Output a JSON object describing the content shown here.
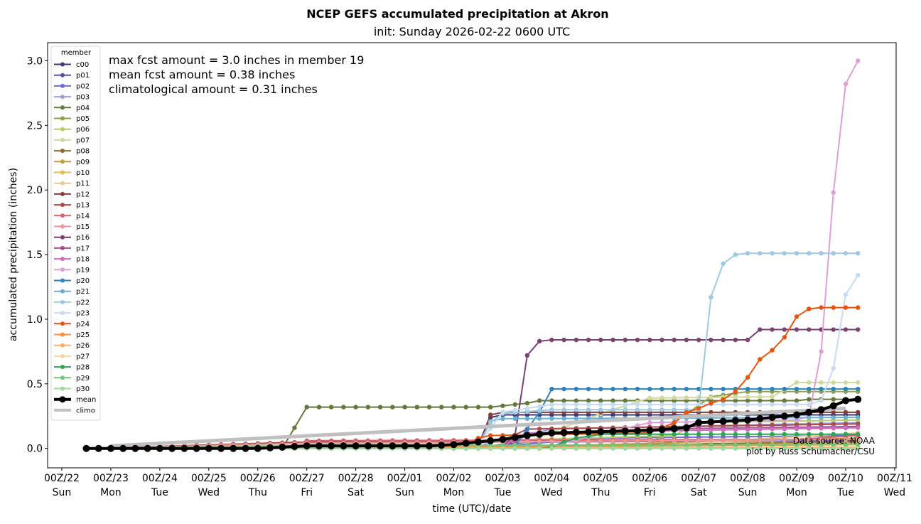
{
  "chart_data": {
    "type": "line",
    "title": "NCEP GEFS accumulated precipitation at Akron",
    "subtitle": "init: Sunday 2026-02-22 0600 UTC",
    "xlabel": "time (UTC)/date",
    "ylabel": "accumulated precipitation (inches)",
    "x_units": "days since 00Z Feb 22 2026",
    "xlim": [
      -0.29,
      17.03
    ],
    "ylim": [
      -0.15,
      3.14
    ],
    "marker_step_days": 0.25,
    "marker_range_days": [
      0.5,
      16.25
    ],
    "interpolation": "linear between knots [day, inches]",
    "x_ticks": [
      {
        "label": "00Z/22",
        "day": "Sun"
      },
      {
        "label": "00Z/23",
        "day": "Mon"
      },
      {
        "label": "00Z/24",
        "day": "Tue"
      },
      {
        "label": "00Z/25",
        "day": "Wed"
      },
      {
        "label": "00Z/26",
        "day": "Thu"
      },
      {
        "label": "00Z/27",
        "day": "Fri"
      },
      {
        "label": "00Z/28",
        "day": "Sat"
      },
      {
        "label": "00Z/01",
        "day": "Sun"
      },
      {
        "label": "00Z/02",
        "day": "Mon"
      },
      {
        "label": "00Z/03",
        "day": "Tue"
      },
      {
        "label": "00Z/04",
        "day": "Wed"
      },
      {
        "label": "00Z/05",
        "day": "Thu"
      },
      {
        "label": "00Z/06",
        "day": "Fri"
      },
      {
        "label": "00Z/07",
        "day": "Sat"
      },
      {
        "label": "00Z/08",
        "day": "Sun"
      },
      {
        "label": "00Z/09",
        "day": "Mon"
      },
      {
        "label": "00Z/10",
        "day": "Tue"
      },
      {
        "label": "00Z/11",
        "day": "Wed"
      }
    ],
    "y_ticks": [
      "0.0",
      "0.5",
      "1.0",
      "1.5",
      "2.0",
      "2.5",
      "3.0"
    ],
    "y_tick_values": [
      0,
      0.5,
      1.0,
      1.5,
      2.0,
      2.5,
      3.0
    ],
    "legend_title": "member",
    "legend_position": "upper-left",
    "annotations": [
      "max fcst amount = 3.0 inches in member 19",
      "mean fcst amount = 0.38 inches",
      "climatological amount = 0.31 inches"
    ],
    "credits": [
      "Data source: NOAA",
      "plot by Russ Schumacher/CSU"
    ],
    "series": [
      {
        "name": "c00",
        "color": "#393b79",
        "knots": [
          [
            0.5,
            0
          ],
          [
            8.5,
            0.02
          ],
          [
            8.75,
            0.24
          ],
          [
            9.0,
            0.26
          ],
          [
            16.25,
            0.26
          ]
        ]
      },
      {
        "name": "p01",
        "color": "#5254a3",
        "knots": [
          [
            0.5,
            0
          ],
          [
            8.5,
            0.01
          ],
          [
            9.5,
            0.05
          ],
          [
            16.25,
            0.06
          ]
        ]
      },
      {
        "name": "p02",
        "color": "#6b6ecf",
        "knots": [
          [
            0.5,
            0
          ],
          [
            9.0,
            0.02
          ],
          [
            11,
            0.08
          ],
          [
            16.25,
            0.1
          ]
        ]
      },
      {
        "name": "p03",
        "color": "#9c9ede",
        "knots": [
          [
            0.5,
            0
          ],
          [
            8.5,
            0.02
          ],
          [
            10,
            0.15
          ],
          [
            16.25,
            0.2
          ]
        ]
      },
      {
        "name": "p04",
        "color": "#637939",
        "knots": [
          [
            0.5,
            0
          ],
          [
            4.5,
            0
          ],
          [
            4.75,
            0.16
          ],
          [
            5.0,
            0.32
          ],
          [
            8.75,
            0.32
          ],
          [
            9.0,
            0.33
          ],
          [
            9.5,
            0.35
          ],
          [
            9.75,
            0.37
          ],
          [
            15.0,
            0.37
          ],
          [
            15.25,
            0.38
          ],
          [
            16.25,
            0.38
          ]
        ]
      },
      {
        "name": "p05",
        "color": "#8ca252",
        "knots": [
          [
            0.5,
            0
          ],
          [
            12,
            0.02
          ],
          [
            12.5,
            0.2
          ],
          [
            13.25,
            0.4
          ],
          [
            14,
            0.44
          ],
          [
            16.25,
            0.44
          ]
        ]
      },
      {
        "name": "p06",
        "color": "#b5cf6b",
        "knots": [
          [
            0.5,
            0
          ],
          [
            5,
            0.02
          ],
          [
            12.5,
            0.1
          ],
          [
            13,
            0.2
          ],
          [
            16.25,
            0.22
          ]
        ]
      },
      {
        "name": "p07",
        "color": "#cedb9c",
        "knots": [
          [
            0.5,
            0
          ],
          [
            4,
            0.02
          ],
          [
            9.5,
            0.05
          ],
          [
            10.5,
            0.2
          ],
          [
            11.25,
            0.3
          ],
          [
            12,
            0.39
          ],
          [
            14.5,
            0.4
          ],
          [
            15,
            0.51
          ],
          [
            16.25,
            0.51
          ]
        ]
      },
      {
        "name": "p08",
        "color": "#8c6d31",
        "knots": [
          [
            0.5,
            0
          ],
          [
            9,
            0.02
          ],
          [
            16.25,
            0.05
          ]
        ]
      },
      {
        "name": "p09",
        "color": "#bd9e39",
        "knots": [
          [
            0.5,
            0
          ],
          [
            10,
            0.02
          ],
          [
            16.25,
            0.08
          ]
        ]
      },
      {
        "name": "p10",
        "color": "#e7ba52",
        "knots": [
          [
            0.5,
            0
          ],
          [
            10,
            0.01
          ],
          [
            16.25,
            0.04
          ]
        ]
      },
      {
        "name": "p11",
        "color": "#e7cb94",
        "knots": [
          [
            0.5,
            0
          ],
          [
            12,
            0.02
          ],
          [
            16.25,
            0.12
          ]
        ]
      },
      {
        "name": "p12",
        "color": "#843c39",
        "knots": [
          [
            0.5,
            0
          ],
          [
            4.75,
            0.02
          ],
          [
            8.5,
            0.02
          ],
          [
            8.75,
            0.26
          ],
          [
            9.0,
            0.28
          ],
          [
            16.25,
            0.28
          ]
        ]
      },
      {
        "name": "p13",
        "color": "#ad494a",
        "knots": [
          [
            0.5,
            0
          ],
          [
            5,
            0.05
          ],
          [
            9,
            0.06
          ],
          [
            9.5,
            0.15
          ],
          [
            16.25,
            0.19
          ]
        ]
      },
      {
        "name": "p14",
        "color": "#d6616b",
        "knots": [
          [
            0.5,
            0
          ],
          [
            4.5,
            0
          ],
          [
            5,
            0.06
          ],
          [
            15,
            0.07
          ],
          [
            16.25,
            0.1
          ]
        ]
      },
      {
        "name": "p15",
        "color": "#e7969c",
        "knots": [
          [
            0.5,
            0
          ],
          [
            5,
            0.04
          ],
          [
            16.25,
            0.07
          ]
        ]
      },
      {
        "name": "p16",
        "color": "#7b4173",
        "knots": [
          [
            0.5,
            0
          ],
          [
            9.0,
            0.02
          ],
          [
            9.25,
            0.1
          ],
          [
            9.5,
            0.72
          ],
          [
            9.75,
            0.83
          ],
          [
            10.0,
            0.84
          ],
          [
            14.0,
            0.84
          ],
          [
            14.25,
            0.92
          ],
          [
            16.25,
            0.92
          ]
        ]
      },
      {
        "name": "p17",
        "color": "#a55194",
        "knots": [
          [
            0.5,
            0
          ],
          [
            9,
            0.02
          ],
          [
            9.5,
            0.1
          ],
          [
            12,
            0.15
          ],
          [
            16.25,
            0.17
          ]
        ]
      },
      {
        "name": "p18",
        "color": "#ce6dbd",
        "knots": [
          [
            0.5,
            0
          ],
          [
            9,
            0.02
          ],
          [
            9.5,
            0.12
          ],
          [
            16.25,
            0.16
          ]
        ]
      },
      {
        "name": "p19",
        "color": "#de9ed6",
        "knots": [
          [
            0.5,
            0
          ],
          [
            10,
            0.02
          ],
          [
            12,
            0.2
          ],
          [
            15.0,
            0.22
          ],
          [
            15.25,
            0.25
          ],
          [
            15.5,
            0.75
          ],
          [
            15.75,
            1.98
          ],
          [
            16.0,
            2.82
          ],
          [
            16.25,
            3.0
          ]
        ]
      },
      {
        "name": "p20",
        "color": "#3182bd",
        "knots": [
          [
            0.5,
            0
          ],
          [
            9.25,
            0.02
          ],
          [
            9.5,
            0.15
          ],
          [
            9.75,
            0.28
          ],
          [
            10.0,
            0.46
          ],
          [
            16.25,
            0.46
          ]
        ]
      },
      {
        "name": "p21",
        "color": "#6baed6",
        "knots": [
          [
            0.5,
            0
          ],
          [
            8.5,
            0.02
          ],
          [
            8.75,
            0.21
          ],
          [
            9.0,
            0.23
          ],
          [
            16.25,
            0.24
          ]
        ]
      },
      {
        "name": "p22",
        "color": "#9ecae1",
        "knots": [
          [
            0.5,
            0
          ],
          [
            8.5,
            0.02
          ],
          [
            8.75,
            0.2
          ],
          [
            9.0,
            0.27
          ],
          [
            10,
            0.3
          ],
          [
            13.0,
            0.3
          ],
          [
            13.25,
            1.17
          ],
          [
            13.5,
            1.43
          ],
          [
            13.75,
            1.5
          ],
          [
            14.0,
            1.51
          ],
          [
            16.25,
            1.51
          ]
        ]
      },
      {
        "name": "p23",
        "color": "#c6dbef",
        "knots": [
          [
            0.5,
            0
          ],
          [
            8.5,
            0.03
          ],
          [
            9,
            0.28
          ],
          [
            10,
            0.34
          ],
          [
            15.25,
            0.34
          ],
          [
            15.5,
            0.37
          ],
          [
            15.75,
            0.62
          ],
          [
            16.0,
            1.19
          ],
          [
            16.25,
            1.34
          ]
        ]
      },
      {
        "name": "p24",
        "color": "#e6550d",
        "knots": [
          [
            0.5,
            0
          ],
          [
            8.25,
            0.03
          ],
          [
            8.5,
            0.08
          ],
          [
            8.75,
            0.1
          ],
          [
            12.0,
            0.12
          ],
          [
            12.5,
            0.2
          ],
          [
            12.75,
            0.28
          ],
          [
            13.0,
            0.31
          ],
          [
            13.25,
            0.35
          ],
          [
            13.5,
            0.38
          ],
          [
            13.75,
            0.44
          ],
          [
            14.0,
            0.55
          ],
          [
            14.25,
            0.69
          ],
          [
            14.5,
            0.76
          ],
          [
            14.75,
            0.86
          ],
          [
            15.0,
            1.02
          ],
          [
            15.25,
            1.08
          ],
          [
            15.5,
            1.09
          ],
          [
            16.25,
            1.09
          ]
        ]
      },
      {
        "name": "p25",
        "color": "#fd8d3c",
        "knots": [
          [
            0.5,
            0
          ],
          [
            8,
            0.01
          ],
          [
            16.25,
            0.03
          ]
        ]
      },
      {
        "name": "p26",
        "color": "#fdae6b",
        "knots": [
          [
            0.5,
            0
          ],
          [
            16.25,
            0.01
          ]
        ]
      },
      {
        "name": "p27",
        "color": "#fdd0a2",
        "knots": [
          [
            0.5,
            0
          ],
          [
            16.25,
            0.0
          ]
        ]
      },
      {
        "name": "p28",
        "color": "#31a354",
        "knots": [
          [
            0.5,
            0
          ],
          [
            9.75,
            0
          ],
          [
            10.0,
            0.01
          ],
          [
            10.25,
            0.05
          ],
          [
            10.5,
            0.08
          ],
          [
            11,
            0.11
          ],
          [
            16.25,
            0.11
          ]
        ]
      },
      {
        "name": "p29",
        "color": "#74c476",
        "knots": [
          [
            0.5,
            0
          ],
          [
            4.5,
            0.02
          ],
          [
            16.25,
            0.03
          ]
        ]
      },
      {
        "name": "p30",
        "color": "#a1d99b",
        "knots": [
          [
            0.5,
            0
          ],
          [
            16.25,
            0.0
          ]
        ]
      },
      {
        "name": "mean",
        "color": "#000000",
        "bold": true,
        "knots": [
          [
            0.5,
            0
          ],
          [
            4.0,
            0
          ],
          [
            5.0,
            0.02
          ],
          [
            7.5,
            0.02
          ],
          [
            8.0,
            0.03
          ],
          [
            8.5,
            0.05
          ],
          [
            9.0,
            0.07
          ],
          [
            9.5,
            0.1
          ],
          [
            10.0,
            0.12
          ],
          [
            11.0,
            0.13
          ],
          [
            12.0,
            0.14
          ],
          [
            12.75,
            0.16
          ],
          [
            13.0,
            0.2
          ],
          [
            13.5,
            0.21
          ],
          [
            14.0,
            0.22
          ],
          [
            14.5,
            0.24
          ],
          [
            15.0,
            0.26
          ],
          [
            15.5,
            0.3
          ],
          [
            15.75,
            0.33
          ],
          [
            16.0,
            0.37
          ],
          [
            16.25,
            0.38
          ]
        ]
      },
      {
        "name": "climo",
        "color": "#c0c0c0",
        "climo": true,
        "knots": [
          [
            1.0,
            0.02
          ],
          [
            16.0,
            0.31
          ]
        ]
      }
    ]
  }
}
